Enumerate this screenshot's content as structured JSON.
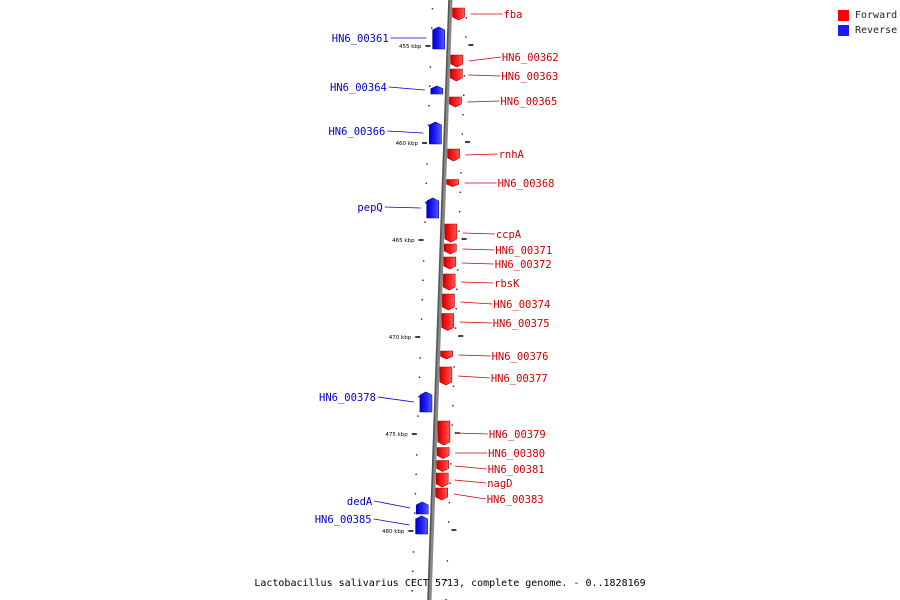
{
  "legend": {
    "forward_label": "Forward",
    "reverse_label": "Reverse",
    "forward_color": "#ff0000",
    "reverse_color": "#1a1aff"
  },
  "caption": "Lactobacillus salivarius CECT 5713, complete genome. - 0..1828169",
  "axis": {
    "ticks": [
      "455 kbp",
      "460 kbp",
      "465 kbp",
      "470 kbp",
      "475 kbp",
      "480 kbp"
    ]
  },
  "genes": [
    {
      "name": "fba",
      "strand": "forward"
    },
    {
      "name": "HN6_00361",
      "strand": "reverse"
    },
    {
      "name": "HN6_00362",
      "strand": "forward"
    },
    {
      "name": "HN6_00363",
      "strand": "forward"
    },
    {
      "name": "HN6_00364",
      "strand": "reverse"
    },
    {
      "name": "HN6_00365",
      "strand": "forward"
    },
    {
      "name": "HN6_00366",
      "strand": "reverse"
    },
    {
      "name": "rnhA",
      "strand": "forward"
    },
    {
      "name": "HN6_00368",
      "strand": "forward"
    },
    {
      "name": "pepQ",
      "strand": "reverse"
    },
    {
      "name": "ccpA",
      "strand": "forward"
    },
    {
      "name": "HN6_00371",
      "strand": "forward"
    },
    {
      "name": "HN6_00372",
      "strand": "forward"
    },
    {
      "name": "rbsK",
      "strand": "forward"
    },
    {
      "name": "HN6_00374",
      "strand": "forward"
    },
    {
      "name": "HN6_00375",
      "strand": "forward"
    },
    {
      "name": "HN6_00376",
      "strand": "forward"
    },
    {
      "name": "HN6_00377",
      "strand": "forward"
    },
    {
      "name": "HN6_00378",
      "strand": "reverse"
    },
    {
      "name": "HN6_00379",
      "strand": "forward"
    },
    {
      "name": "HN6_00380",
      "strand": "forward"
    },
    {
      "name": "HN6_00381",
      "strand": "forward"
    },
    {
      "name": "nagD",
      "strand": "forward"
    },
    {
      "name": "HN6_00383",
      "strand": "forward"
    },
    {
      "name": "dedA",
      "strand": "reverse"
    },
    {
      "name": "HN6_00385",
      "strand": "reverse"
    }
  ]
}
